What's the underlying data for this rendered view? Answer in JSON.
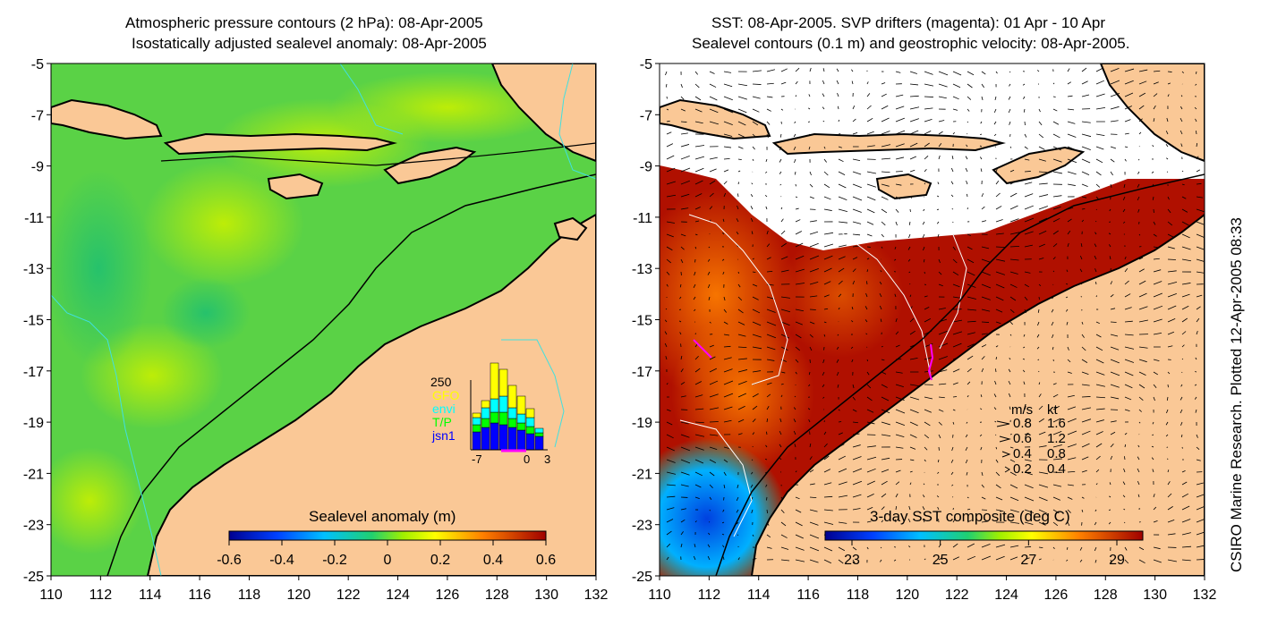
{
  "left_panel": {
    "title_line1": "Atmospheric pressure contours (2 hPa): 08-Apr-2005",
    "title_line2": "Isostatically adjusted sealevel anomaly: 08-Apr-2005",
    "colorbar_label": "Sealevel anomaly (m)",
    "colorbar_ticks": [
      "-0.6",
      "-0.4",
      "-0.2",
      "0",
      "0.2",
      "0.4",
      "0.6"
    ],
    "inset": {
      "ymax_label": "250",
      "legend": [
        {
          "label": "GFO",
          "color": "#ffff00"
        },
        {
          "label": "envi",
          "color": "#00ffff"
        },
        {
          "label": "T/P",
          "color": "#00ff00"
        },
        {
          "label": "jsn1",
          "color": "#0000ff"
        }
      ],
      "x_ticks": [
        "-7",
        "0",
        "3"
      ]
    }
  },
  "right_panel": {
    "title_line1": "SST: 08-Apr-2005. SVP drifters (magenta): 01 Apr - 10 Apr",
    "title_line2": "Sealevel contours (0.1 m) and geostrophic velocity: 08-Apr-2005.",
    "colorbar_label": "3-day SST composite (deg C)",
    "colorbar_ticks": [
      "23",
      "25",
      "27",
      "29"
    ],
    "velocity_legend": {
      "header_ms": "m/s",
      "header_kt": "kt",
      "rows": [
        {
          "ms": "0.8",
          "kt": "1.6"
        },
        {
          "ms": "0.6",
          "kt": "1.2"
        },
        {
          "ms": "0.4",
          "kt": "0.8"
        },
        {
          "ms": "0.2",
          "kt": "0.4"
        }
      ]
    }
  },
  "axes": {
    "x_ticks": [
      "110",
      "112",
      "114",
      "116",
      "118",
      "120",
      "122",
      "124",
      "126",
      "128",
      "130",
      "132"
    ],
    "y_ticks": [
      "-5",
      "-7",
      "-9",
      "-11",
      "-13",
      "-15",
      "-17",
      "-19",
      "-21",
      "-23",
      "-25"
    ]
  },
  "credit": "CSIRO Marine Research. Plotted 12-Apr-2005 08:33",
  "colors": {
    "land": "#fac896",
    "sea_green": "#5ad246",
    "sea_dark_red": "#a00000",
    "white_cloud": "#ffffff"
  }
}
